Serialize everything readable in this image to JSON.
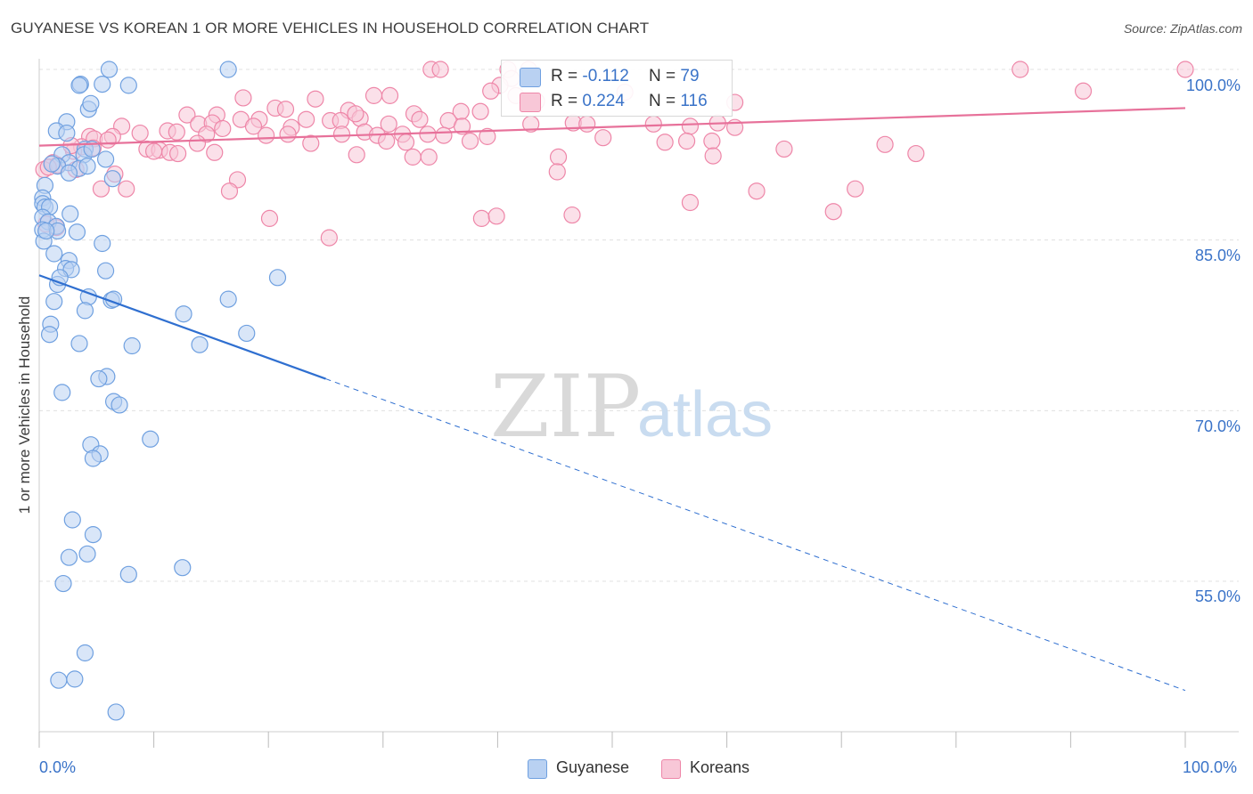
{
  "title": "GUYANESE VS KOREAN 1 OR MORE VEHICLES IN HOUSEHOLD CORRELATION CHART",
  "source": "Source: ZipAtlas.com",
  "watermark": {
    "zip": "ZIP",
    "atlas": "atlas"
  },
  "colors": {
    "blue": "#6fa0e0",
    "blue_fill": "#b9d1f2",
    "pink": "#ee86a8",
    "pink_fill": "#f8c7d7",
    "blue_line": "#2f6fd0",
    "pink_line": "#e7719a",
    "accent_text": "#3a73c8"
  },
  "legend_top": {
    "rows": [
      {
        "r_label": "R = ",
        "r_value": "-0.112",
        "n_label": "N = ",
        "n_value": "79"
      },
      {
        "r_label": "R = ",
        "r_value": "0.224",
        "n_label": "N = ",
        "n_value": "116"
      }
    ]
  },
  "legend_bottom": {
    "items": [
      "Guyanese",
      "Koreans"
    ]
  },
  "chart_data": {
    "type": "scatter",
    "title": "GUYANESE VS KOREAN 1 OR MORE VEHICLES IN HOUSEHOLD CORRELATION CHART",
    "xlabel": "",
    "ylabel": "1 or more Vehicles in Household",
    "xlim": [
      0,
      100
    ],
    "ylim": [
      41.0,
      101.5
    ],
    "x_tick_labels": [
      "0.0%",
      "100.0%"
    ],
    "y_ticks": [
      55.0,
      70.0,
      85.0,
      100.0
    ],
    "y_tick_labels": [
      "55.0%",
      "70.0%",
      "85.0%",
      "100.0%"
    ],
    "grid": true,
    "series": [
      {
        "name": "Guyanese",
        "color": "#6fa0e0",
        "trend": {
          "x": [
            0,
            25.0
          ],
          "y": [
            81.9,
            72.8
          ],
          "dashed_to": [
            100,
            45.4
          ]
        },
        "points": [
          [
            6.1,
            100.0
          ],
          [
            16.5,
            100.0
          ],
          [
            3.6,
            98.7
          ],
          [
            5.5,
            98.7
          ],
          [
            7.8,
            98.6
          ],
          [
            3.5,
            98.6
          ],
          [
            4.3,
            96.5
          ],
          [
            4.5,
            97.0
          ],
          [
            2.4,
            95.4
          ],
          [
            1.5,
            94.6
          ],
          [
            2.4,
            94.4
          ],
          [
            4.0,
            93.0
          ],
          [
            2.0,
            92.5
          ],
          [
            3.9,
            92.5
          ],
          [
            4.6,
            93.0
          ],
          [
            5.8,
            92.1
          ],
          [
            2.6,
            91.8
          ],
          [
            1.6,
            91.5
          ],
          [
            3.5,
            91.3
          ],
          [
            4.2,
            91.5
          ],
          [
            2.6,
            90.9
          ],
          [
            6.4,
            90.4
          ],
          [
            0.5,
            89.8
          ],
          [
            0.3,
            88.7
          ],
          [
            0.3,
            88.2
          ],
          [
            0.5,
            87.9
          ],
          [
            0.9,
            87.9
          ],
          [
            0.3,
            87.0
          ],
          [
            2.7,
            87.3
          ],
          [
            0.8,
            86.6
          ],
          [
            1.5,
            86.2
          ],
          [
            0.3,
            85.9
          ],
          [
            1.6,
            85.8
          ],
          [
            3.3,
            85.7
          ],
          [
            0.4,
            84.9
          ],
          [
            5.5,
            84.7
          ],
          [
            1.3,
            83.8
          ],
          [
            2.6,
            83.2
          ],
          [
            2.3,
            82.5
          ],
          [
            2.8,
            82.4
          ],
          [
            5.8,
            82.3
          ],
          [
            20.8,
            81.7
          ],
          [
            1.6,
            81.1
          ],
          [
            1.8,
            81.7
          ],
          [
            4.3,
            80.0
          ],
          [
            6.3,
            79.7
          ],
          [
            6.5,
            79.8
          ],
          [
            16.5,
            79.8
          ],
          [
            1.3,
            79.6
          ],
          [
            4.0,
            78.8
          ],
          [
            12.6,
            78.5
          ],
          [
            1.0,
            77.6
          ],
          [
            0.9,
            76.7
          ],
          [
            18.1,
            76.8
          ],
          [
            3.5,
            75.9
          ],
          [
            8.1,
            75.7
          ],
          [
            14.0,
            75.8
          ],
          [
            5.9,
            73.0
          ],
          [
            5.2,
            72.8
          ],
          [
            2.0,
            71.6
          ],
          [
            6.5,
            70.8
          ],
          [
            7.0,
            70.5
          ],
          [
            9.7,
            67.5
          ],
          [
            4.5,
            67.0
          ],
          [
            5.3,
            66.2
          ],
          [
            4.7,
            65.8
          ],
          [
            2.9,
            60.4
          ],
          [
            4.7,
            59.1
          ],
          [
            2.6,
            57.1
          ],
          [
            4.2,
            57.4
          ],
          [
            7.8,
            55.6
          ],
          [
            12.5,
            56.2
          ],
          [
            2.1,
            54.8
          ],
          [
            4.0,
            48.7
          ],
          [
            1.7,
            46.3
          ],
          [
            3.1,
            46.4
          ],
          [
            6.7,
            43.5
          ],
          [
            1.1,
            91.7
          ],
          [
            0.6,
            85.8
          ]
        ]
      },
      {
        "name": "Koreans",
        "color": "#ee86a8",
        "trend": {
          "x": [
            0,
            100
          ],
          "y": [
            93.3,
            96.6
          ]
        },
        "points": [
          [
            34.2,
            100.0
          ],
          [
            35.0,
            100.0
          ],
          [
            40.9,
            100.0
          ],
          [
            42.7,
            100.0
          ],
          [
            85.6,
            100.0
          ],
          [
            100.0,
            100.0
          ],
          [
            41.2,
            99.2
          ],
          [
            40.2,
            98.6
          ],
          [
            39.4,
            98.1
          ],
          [
            91.1,
            98.1
          ],
          [
            17.8,
            97.5
          ],
          [
            24.1,
            97.4
          ],
          [
            29.2,
            97.7
          ],
          [
            30.6,
            97.7
          ],
          [
            43.4,
            97.2
          ],
          [
            51.1,
            98.0
          ],
          [
            20.6,
            96.6
          ],
          [
            21.5,
            96.5
          ],
          [
            27.0,
            96.4
          ],
          [
            32.7,
            96.1
          ],
          [
            36.8,
            96.3
          ],
          [
            38.5,
            96.3
          ],
          [
            60.7,
            97.1
          ],
          [
            12.9,
            96.0
          ],
          [
            15.5,
            96.0
          ],
          [
            17.6,
            95.6
          ],
          [
            19.2,
            95.6
          ],
          [
            23.3,
            95.6
          ],
          [
            25.4,
            95.5
          ],
          [
            26.3,
            95.5
          ],
          [
            28.0,
            95.7
          ],
          [
            33.2,
            95.6
          ],
          [
            35.7,
            95.5
          ],
          [
            13.9,
            95.2
          ],
          [
            15.1,
            95.3
          ],
          [
            16.0,
            94.8
          ],
          [
            18.7,
            95.0
          ],
          [
            22.0,
            94.9
          ],
          [
            30.5,
            95.2
          ],
          [
            42.9,
            95.2
          ],
          [
            46.6,
            95.3
          ],
          [
            47.8,
            95.2
          ],
          [
            53.6,
            95.2
          ],
          [
            56.8,
            95.0
          ],
          [
            59.2,
            95.3
          ],
          [
            60.7,
            94.9
          ],
          [
            7.2,
            95.0
          ],
          [
            8.8,
            94.4
          ],
          [
            11.2,
            94.6
          ],
          [
            12.0,
            94.5
          ],
          [
            14.6,
            94.3
          ],
          [
            19.8,
            94.2
          ],
          [
            21.7,
            94.3
          ],
          [
            26.4,
            94.3
          ],
          [
            28.4,
            94.5
          ],
          [
            29.5,
            94.2
          ],
          [
            31.7,
            94.3
          ],
          [
            33.9,
            94.3
          ],
          [
            4.4,
            94.1
          ],
          [
            6.4,
            94.1
          ],
          [
            4.8,
            93.9
          ],
          [
            3.7,
            93.2
          ],
          [
            6.0,
            93.8
          ],
          [
            13.8,
            93.5
          ],
          [
            23.7,
            93.5
          ],
          [
            30.3,
            93.7
          ],
          [
            32.0,
            93.6
          ],
          [
            35.3,
            94.2
          ],
          [
            37.6,
            93.7
          ],
          [
            39.1,
            94.1
          ],
          [
            49.2,
            94.0
          ],
          [
            54.6,
            93.6
          ],
          [
            56.5,
            93.7
          ],
          [
            58.7,
            93.7
          ],
          [
            65.0,
            93.0
          ],
          [
            73.8,
            93.4
          ],
          [
            3.0,
            92.8
          ],
          [
            4.7,
            93.1
          ],
          [
            9.4,
            93.0
          ],
          [
            10.5,
            92.9
          ],
          [
            11.4,
            92.7
          ],
          [
            12.1,
            92.6
          ],
          [
            27.7,
            92.5
          ],
          [
            32.6,
            92.3
          ],
          [
            34.0,
            92.3
          ],
          [
            45.3,
            92.3
          ],
          [
            58.8,
            92.4
          ],
          [
            76.5,
            92.6
          ],
          [
            1.2,
            91.8
          ],
          [
            1.6,
            91.6
          ],
          [
            0.4,
            91.2
          ],
          [
            0.8,
            91.4
          ],
          [
            3.2,
            91.2
          ],
          [
            6.6,
            90.8
          ],
          [
            17.3,
            90.3
          ],
          [
            5.4,
            89.5
          ],
          [
            7.6,
            89.5
          ],
          [
            16.6,
            89.3
          ],
          [
            62.6,
            89.3
          ],
          [
            71.2,
            89.5
          ],
          [
            38.6,
            86.9
          ],
          [
            39.9,
            87.1
          ],
          [
            46.5,
            87.2
          ],
          [
            69.3,
            87.5
          ],
          [
            20.1,
            86.9
          ],
          [
            25.3,
            85.2
          ],
          [
            1.5,
            86.1
          ],
          [
            0.6,
            86.4
          ],
          [
            56.8,
            88.3
          ],
          [
            2.8,
            93.3
          ],
          [
            45.2,
            91.0
          ],
          [
            41.6,
            97.7
          ],
          [
            36.9,
            95.0
          ],
          [
            27.6,
            96.1
          ],
          [
            15.3,
            92.7
          ],
          [
            10.0,
            92.8
          ]
        ]
      }
    ]
  }
}
